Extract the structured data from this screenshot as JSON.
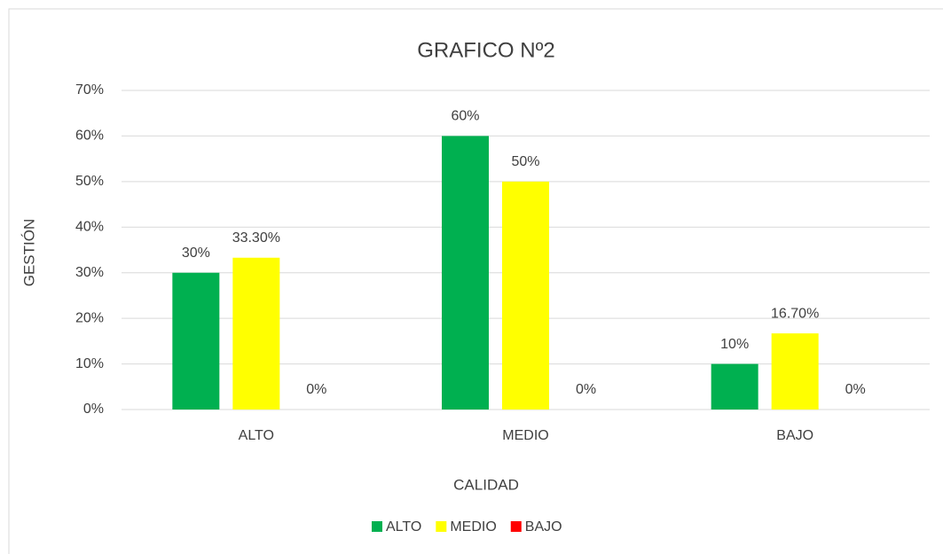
{
  "chart_data": {
    "type": "bar",
    "title": "GRAFICO Nº2",
    "x_label": "CALIDAD",
    "y_label": "GESTIÓN",
    "categories": [
      "ALTO",
      "MEDIO",
      "BAJO"
    ],
    "series": [
      {
        "name": "ALTO",
        "color": "#00b050",
        "values": [
          30,
          60,
          10
        ],
        "value_labels": [
          "30%",
          "60%",
          "10%"
        ]
      },
      {
        "name": "MEDIO",
        "color": "#ffff00",
        "values": [
          33.3,
          50,
          16.7
        ],
        "value_labels": [
          "33.30%",
          "50%",
          "16.70%"
        ]
      },
      {
        "name": "BAJO",
        "color": "#ff0000",
        "values": [
          0,
          0,
          0
        ],
        "value_labels": [
          "0%",
          "0%",
          "0%"
        ]
      }
    ],
    "ylim": [
      0,
      70
    ],
    "yticks": [
      {
        "value": 0,
        "label": "0%"
      },
      {
        "value": 10,
        "label": "10%"
      },
      {
        "value": 20,
        "label": "20%"
      },
      {
        "value": 30,
        "label": "30%"
      },
      {
        "value": 40,
        "label": "40%"
      },
      {
        "value": 50,
        "label": "50%"
      },
      {
        "value": 60,
        "label": "60%"
      },
      {
        "value": 70,
        "label": "70%"
      }
    ],
    "grid": true,
    "legend": "bottom"
  }
}
